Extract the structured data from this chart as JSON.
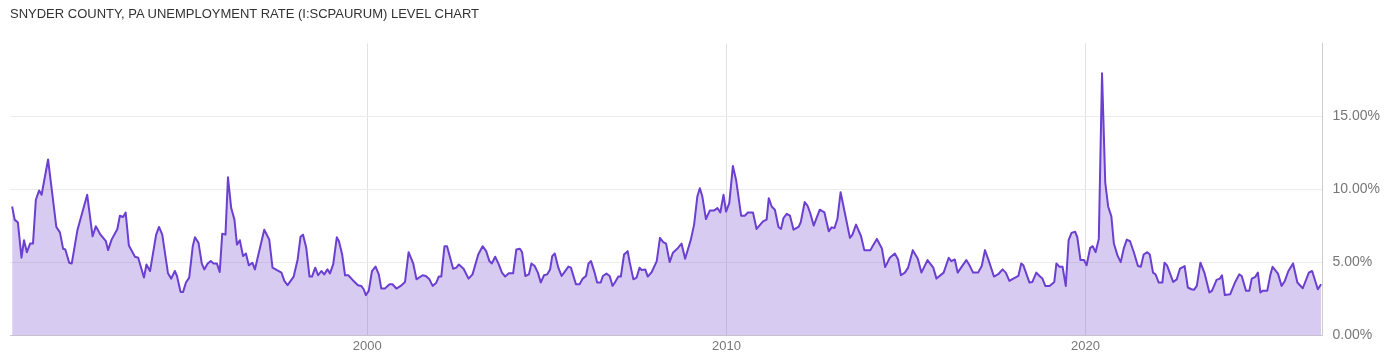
{
  "chart_data": {
    "type": "area",
    "title": "SNYDER COUNTY, PA UNEMPLOYMENT RATE (I:SCPAURUM) LEVEL CHART",
    "x": [
      1990.11,
      1990.18,
      1990.27,
      1990.37,
      1990.44,
      1990.52,
      1990.61,
      1990.69,
      1990.77,
      1990.86,
      1990.93,
      1991.11,
      1991.34,
      1991.44,
      1991.53,
      1991.59,
      1991.7,
      1991.77,
      1991.93,
      1992.2,
      1992.35,
      1992.44,
      1992.57,
      1992.72,
      1992.78,
      1992.88,
      1993.04,
      1993.11,
      1993.2,
      1993.27,
      1993.36,
      1993.53,
      1993.62,
      1993.78,
      1993.85,
      1993.95,
      1994.12,
      1994.2,
      1994.29,
      1994.45,
      1994.54,
      1994.64,
      1994.7,
      1994.8,
      1994.87,
      1994.95,
      1995.04,
      1995.14,
      1995.2,
      1995.3,
      1995.39,
      1995.46,
      1995.55,
      1995.64,
      1995.72,
      1995.81,
      1995.89,
      1995.96,
      1996.05,
      1996.12,
      1996.21,
      1996.3,
      1996.37,
      1996.45,
      1996.54,
      1996.62,
      1996.7,
      1996.8,
      1996.87,
      1997.13,
      1997.27,
      1997.36,
      1997.61,
      1997.69,
      1997.78,
      1997.95,
      1998.06,
      1998.14,
      1998.21,
      1998.3,
      1998.39,
      1998.46,
      1998.55,
      1998.63,
      1998.72,
      1998.8,
      1998.89,
      1998.96,
      1999.05,
      1999.15,
      1999.21,
      1999.3,
      1999.38,
      1999.47,
      1999.59,
      1999.74,
      1999.83,
      1999.9,
      1999.96,
      2000.04,
      2000.13,
      2000.23,
      2000.32,
      2000.39,
      2000.49,
      2000.62,
      2000.7,
      2000.81,
      2000.93,
      2001.05,
      2001.15,
      2001.28,
      2001.37,
      2001.54,
      2001.63,
      2001.73,
      2001.82,
      2001.92,
      2001.99,
      2002.06,
      2002.15,
      2002.22,
      2002.39,
      2002.48,
      2002.55,
      2002.68,
      2002.82,
      2002.93,
      2003.09,
      2003.21,
      2003.31,
      2003.4,
      2003.47,
      2003.56,
      2003.65,
      2003.75,
      2003.84,
      2003.94,
      2004.06,
      2004.15,
      2004.25,
      2004.31,
      2004.4,
      2004.5,
      2004.57,
      2004.66,
      2004.75,
      2004.83,
      2004.92,
      2005.01,
      2005.09,
      2005.15,
      2005.22,
      2005.32,
      2005.41,
      2005.48,
      2005.6,
      2005.67,
      2005.81,
      2005.91,
      2006.0,
      2006.09,
      2006.16,
      2006.23,
      2006.33,
      2006.4,
      2006.5,
      2006.56,
      2006.66,
      2006.75,
      2006.83,
      2006.89,
      2006.99,
      2007.06,
      2007.15,
      2007.25,
      2007.31,
      2007.41,
      2007.5,
      2007.58,
      2007.64,
      2007.74,
      2007.81,
      2007.92,
      2008.06,
      2008.15,
      2008.24,
      2008.32,
      2008.42,
      2008.51,
      2008.63,
      2008.75,
      2008.85,
      2009.01,
      2009.1,
      2009.19,
      2009.26,
      2009.33,
      2009.43,
      2009.54,
      2009.66,
      2009.75,
      2009.83,
      2009.92,
      2009.99,
      2010.08,
      2010.18,
      2010.27,
      2010.41,
      2010.51,
      2010.6,
      2010.74,
      2010.84,
      2011.02,
      2011.12,
      2011.18,
      2011.26,
      2011.35,
      2011.45,
      2011.52,
      2011.59,
      2011.68,
      2011.77,
      2011.87,
      2012.01,
      2012.07,
      2012.18,
      2012.26,
      2012.34,
      2012.43,
      2012.6,
      2012.73,
      2012.85,
      2012.93,
      2013.01,
      2013.09,
      2013.18,
      2013.28,
      2013.44,
      2013.51,
      2013.61,
      2013.75,
      2013.84,
      2014.01,
      2014.07,
      2014.19,
      2014.33,
      2014.42,
      2014.55,
      2014.69,
      2014.78,
      2014.86,
      2014.97,
      2015.06,
      2015.19,
      2015.33,
      2015.43,
      2015.6,
      2015.76,
      2015.85,
      2016.05,
      2016.19,
      2016.26,
      2016.36,
      2016.44,
      2016.68,
      2016.77,
      2016.87,
      2017.01,
      2017.11,
      2017.2,
      2017.31,
      2017.45,
      2017.57,
      2017.69,
      2017.78,
      2017.88,
      2017.99,
      2018.13,
      2018.21,
      2018.27,
      2018.44,
      2018.52,
      2018.63,
      2018.72,
      2018.8,
      2018.88,
      2019.0,
      2019.13,
      2019.19,
      2019.27,
      2019.36,
      2019.45,
      2019.53,
      2019.61,
      2019.71,
      2019.77,
      2019.86,
      2019.96,
      2020.03,
      2020.13,
      2020.2,
      2020.28,
      2020.37,
      2020.46,
      2020.55,
      2020.63,
      2020.72,
      2020.79,
      2020.89,
      2020.98,
      2021.07,
      2021.15,
      2021.24,
      2021.35,
      2021.46,
      2021.54,
      2021.62,
      2021.72,
      2021.79,
      2021.88,
      2021.95,
      2022.04,
      2022.14,
      2022.2,
      2022.27,
      2022.44,
      2022.54,
      2022.63,
      2022.76,
      2022.85,
      2022.95,
      2023.02,
      2023.1,
      2023.2,
      2023.31,
      2023.45,
      2023.52,
      2023.65,
      2023.74,
      2023.8,
      2023.88,
      2024.03,
      2024.17,
      2024.28,
      2024.35,
      2024.47,
      2024.56,
      2024.63,
      2024.73,
      2024.8,
      2024.87,
      2024.93,
      2025.06,
      2025.15,
      2025.21,
      2025.36,
      2025.46,
      2025.55,
      2025.65,
      2025.78,
      2025.9,
      2026.05,
      2026.22,
      2026.31,
      2026.47,
      2026.56
    ],
    "series": [
      {
        "color": "#6b3fcf",
        "values": [
          8.83,
          7.93,
          7.74,
          5.32,
          6.52,
          5.7,
          6.29,
          6.29,
          9.29,
          9.92,
          9.63,
          12.05,
          7.43,
          7.06,
          5.93,
          5.88,
          4.98,
          4.93,
          7.24,
          9.63,
          6.79,
          7.47,
          6.9,
          6.45,
          5.84,
          6.56,
          7.29,
          8.2,
          8.11,
          8.42,
          6.16,
          5.39,
          5.32,
          3.96,
          4.86,
          4.41,
          6.9,
          7.43,
          6.9,
          4.25,
          3.89,
          4.41,
          4.07,
          2.98,
          2.98,
          3.62,
          3.96,
          6.11,
          6.72,
          6.34,
          4.93,
          4.52,
          4.91,
          5.09,
          4.93,
          4.93,
          4.34,
          6.97,
          6.9,
          10.83,
          8.72,
          7.93,
          6.22,
          6.52,
          5.43,
          5.61,
          4.8,
          4.98,
          4.52,
          7.24,
          6.56,
          4.64,
          4.3,
          3.73,
          3.44,
          4.03,
          5.2,
          6.75,
          6.9,
          6.0,
          4.03,
          4.03,
          4.64,
          4.12,
          4.41,
          4.18,
          4.52,
          4.25,
          4.86,
          6.72,
          6.45,
          5.54,
          4.12,
          4.12,
          3.8,
          3.44,
          3.39,
          3.16,
          2.76,
          3.05,
          4.41,
          4.71,
          4.18,
          3.21,
          3.21,
          3.5,
          3.5,
          3.21,
          3.39,
          3.66,
          5.7,
          4.91,
          3.84,
          4.12,
          4.07,
          3.84,
          3.39,
          3.61,
          4.03,
          4.03,
          6.11,
          6.11,
          4.57,
          4.64,
          4.86,
          4.57,
          3.89,
          4.18,
          5.54,
          6.11,
          5.77,
          5.09,
          4.93,
          5.39,
          4.93,
          4.3,
          4.03,
          4.25,
          4.25,
          5.88,
          5.93,
          5.7,
          4.07,
          4.18,
          4.93,
          4.75,
          4.3,
          3.62,
          4.12,
          4.18,
          4.52,
          5.43,
          5.61,
          4.64,
          4.07,
          4.3,
          4.71,
          4.64,
          3.5,
          3.5,
          3.89,
          4.07,
          4.93,
          5.09,
          4.3,
          3.62,
          3.62,
          4.07,
          4.23,
          4.07,
          3.39,
          3.61,
          4.03,
          4.03,
          5.54,
          5.77,
          4.98,
          3.84,
          3.96,
          4.64,
          4.48,
          4.52,
          4.03,
          4.34,
          5.09,
          6.68,
          6.39,
          6.29,
          5.02,
          5.66,
          5.93,
          6.29,
          5.25,
          6.56,
          7.59,
          9.51,
          10.08,
          9.51,
          7.97,
          8.56,
          8.56,
          8.72,
          8.42,
          9.63,
          8.48,
          9.06,
          11.6,
          10.65,
          8.2,
          8.2,
          8.42,
          8.42,
          7.29,
          7.81,
          7.93,
          9.4,
          8.83,
          8.61,
          7.43,
          7.29,
          8.04,
          8.33,
          8.2,
          7.24,
          7.43,
          7.75,
          9.13,
          8.88,
          8.33,
          7.52,
          8.61,
          8.42,
          7.13,
          7.4,
          7.36,
          7.97,
          9.81,
          8.61,
          6.68,
          6.9,
          7.59,
          6.79,
          5.84,
          5.84,
          6.11,
          6.61,
          5.95,
          4.68,
          5.32,
          5.61,
          5.2,
          4.12,
          4.3,
          4.64,
          5.84,
          5.25,
          4.3,
          5.16,
          4.64,
          3.89,
          4.3,
          5.32,
          5.09,
          5.2,
          4.3,
          5.16,
          4.8,
          4.3,
          4.3,
          4.75,
          5.84,
          5.09,
          4.03,
          4.19,
          4.52,
          4.3,
          3.73,
          3.89,
          4.07,
          4.93,
          4.8,
          3.62,
          3.66,
          4.3,
          4.07,
          3.89,
          3.39,
          3.39,
          3.66,
          4.93,
          4.71,
          4.71,
          3.39,
          6.52,
          7.02,
          7.1,
          6.74,
          5.16,
          5.16,
          4.8,
          6.0,
          6.11,
          5.7,
          6.61,
          17.95,
          10.46,
          8.83,
          8.15,
          6.29,
          5.48,
          5.02,
          6.0,
          6.56,
          6.45,
          5.66,
          4.75,
          4.7,
          5.54,
          5.7,
          5.54,
          4.3,
          4.18,
          3.62,
          3.62,
          4.98,
          4.8,
          3.66,
          3.84,
          4.57,
          4.75,
          3.28,
          3.16,
          3.12,
          3.39,
          4.98,
          4.3,
          2.94,
          3.05,
          3.8,
          3.89,
          4.12,
          2.76,
          2.82,
          3.66,
          4.18,
          4.07,
          3.05,
          3.05,
          3.89,
          4.01,
          4.3,
          2.94,
          3.05,
          3.05,
          4.18,
          4.7,
          4.23,
          3.39,
          3.73,
          4.41,
          4.93,
          3.62,
          3.23,
          4.3,
          4.41,
          3.16,
          3.5
        ]
      }
    ],
    "xlim": [
      1990.05,
      2026.6
    ],
    "xticks": [
      2000,
      2010,
      2020
    ],
    "ylim": [
      0,
      20
    ],
    "yticks": [
      {
        "value": 0,
        "label": "0.00%"
      },
      {
        "value": 5,
        "label": "5.00%"
      },
      {
        "value": 10,
        "label": "10.00%"
      },
      {
        "value": 15,
        "label": "15.00%"
      }
    ],
    "grid": true
  }
}
